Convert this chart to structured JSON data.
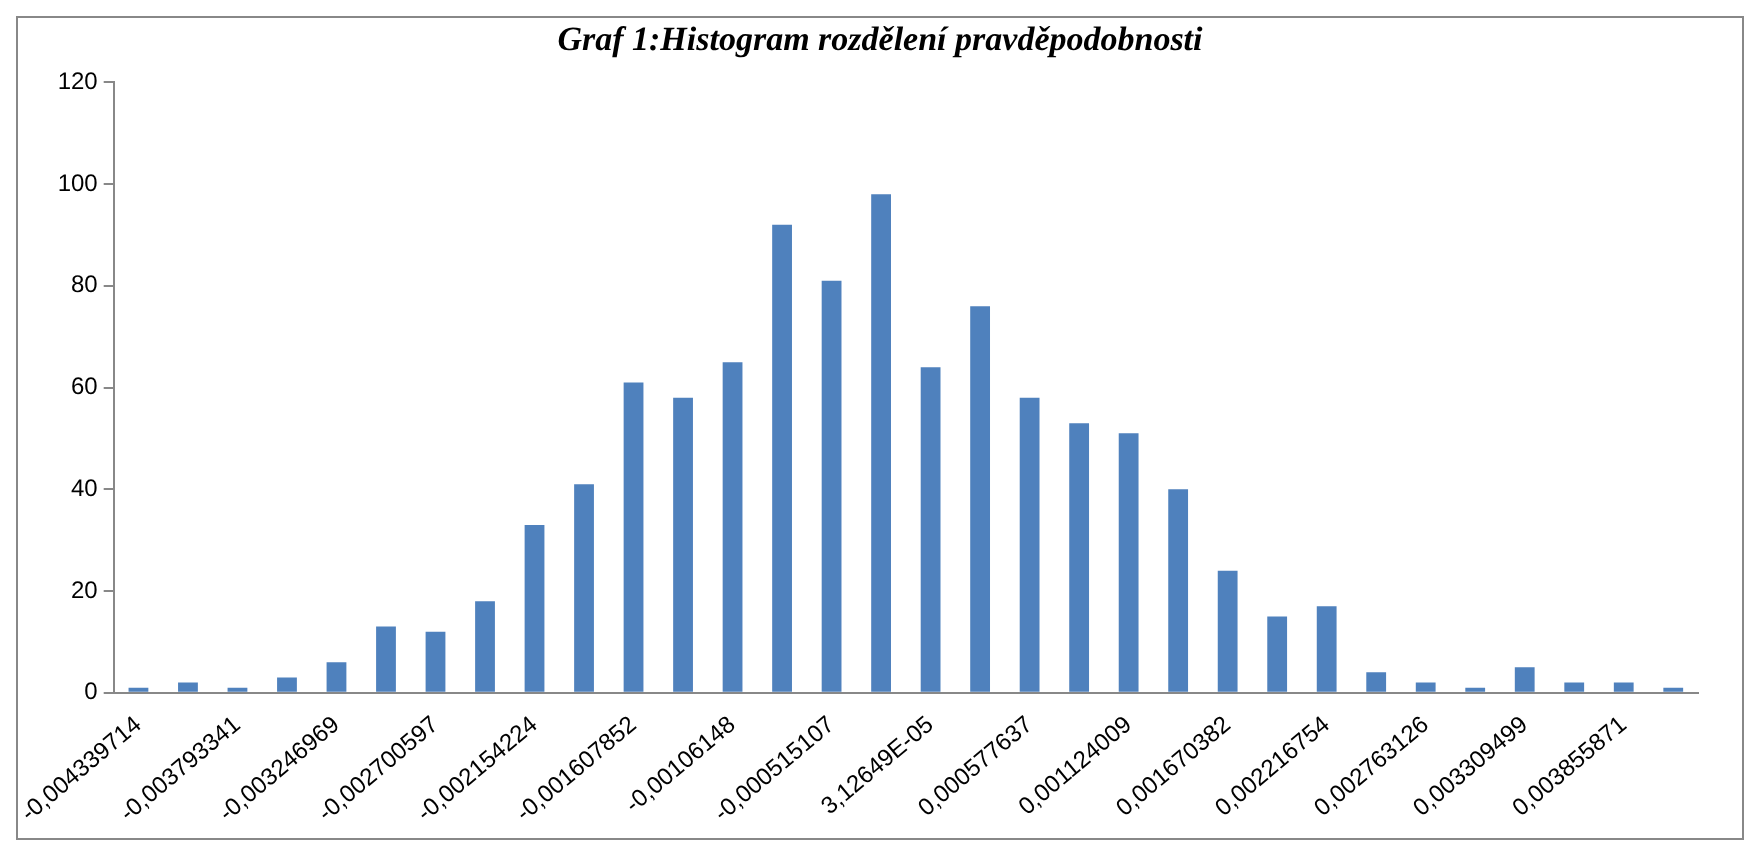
{
  "chart_data": {
    "type": "bar",
    "title": "Graf 1:Histogram rozdělení pravděpodobnosti",
    "categories": [
      "-0,004339714",
      null,
      "-0,003793341",
      null,
      "-0,003246969",
      null,
      "-0,002700597",
      null,
      "-0,002154224",
      null,
      "-0,001607852",
      null,
      "-0,00106148",
      null,
      "-0,000515107",
      null,
      "3,12649E-05",
      null,
      "0,000577637",
      null,
      "0,001124009",
      null,
      "0,001670382",
      null,
      "0,002216754",
      null,
      "0,002763126",
      null,
      "0,003309499",
      null,
      "0,003855871",
      null
    ],
    "values": [
      1,
      2,
      1,
      3,
      6,
      13,
      12,
      18,
      33,
      41,
      61,
      58,
      65,
      92,
      81,
      98,
      64,
      76,
      58,
      53,
      51,
      40,
      24,
      15,
      17,
      4,
      2,
      1,
      5,
      2,
      2,
      1
    ],
    "color": "#4f81bd",
    "ylim": [
      0,
      120
    ],
    "yticks": [
      0,
      20,
      40,
      60,
      80,
      100,
      120
    ],
    "grid": false,
    "legend": false
  }
}
